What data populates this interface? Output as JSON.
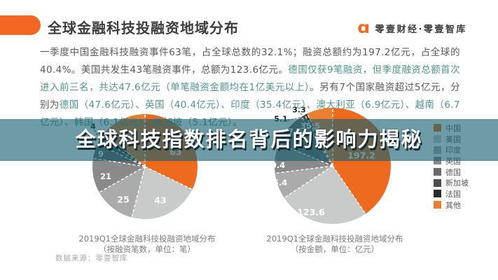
{
  "header": {
    "title": "全球金融科技投融资地域分布",
    "brand": "零壹财经·零壹智库",
    "logo_glyph": "ɑ"
  },
  "paragraph": {
    "segments": [
      {
        "text": "一季度中国金融科技融资事件63笔，占全球总数的32.1%；融资总额约为197.2亿元，占全球的40.4%。美国共发生43笔融资事件，总额为123.6亿元。",
        "accent": false
      },
      {
        "text": "德国仅获9笔融资，但季度融资总额首次进入前三名，共达47.6亿元（单笔融资金额均在1亿美元以上）",
        "accent": true
      },
      {
        "text": "。另有7个国家融资超过5亿元，分别为",
        "accent": false
      },
      {
        "text": "德国（47.6亿元）、英国（40.4亿元）、印度（35.4亿元）、澳大利亚（6.9亿元）、越南（6.7亿元）、韩国（6.1亿元）、新加坡（5.1亿元）",
        "accent": true
      },
      {
        "text": "。",
        "accent": false
      }
    ]
  },
  "banner": {
    "text": "全球科技指数排名背后的影响力揭秘"
  },
  "legend": {
    "items": [
      {
        "label": "中国",
        "color": "#ED6A1E"
      },
      {
        "label": "美国",
        "color": "#C9CBCB"
      },
      {
        "label": "印度",
        "color": "#ABABAB"
      },
      {
        "label": "英国",
        "color": "#8A8A8A"
      },
      {
        "label": "德国",
        "color": "#6B6B6B"
      },
      {
        "label": "新加坡",
        "color": "#4D4D4D"
      },
      {
        "label": "法国",
        "color": "#2B2B2B"
      },
      {
        "label": "其他",
        "color": "#ED7D31"
      }
    ]
  },
  "chart_data": [
    {
      "type": "pie",
      "title": "2019Q1全球金融科技投融资地域分布",
      "subtitle": "（按融资笔数，单位：笔）",
      "unit": "笔",
      "categories": [
        "中国",
        "美国",
        "印度",
        "英国",
        "德国",
        "新加坡",
        "法国",
        "其他"
      ],
      "values": [
        63,
        43,
        25,
        21,
        9,
        4,
        3,
        28
      ],
      "labels_shown": [
        "63",
        "43",
        "25",
        "21",
        "9",
        "4",
        null,
        null
      ],
      "colors": [
        "#ED6A1E",
        "#C9CBCB",
        "#ABABAB",
        "#8A8A8A",
        "#6B6B6B",
        "#4D4D4D",
        "#2B2B2B",
        "#ED7D31"
      ],
      "legend_position": "right",
      "note": "中国63笔占全球总数32.1%"
    },
    {
      "type": "pie",
      "title": "2019Q1全球金融科技投融资地域分布",
      "subtitle": "（按金额，单位：亿元）",
      "unit": "亿元",
      "categories": [
        "中国",
        "美国",
        "印度",
        "英国",
        "德国",
        "新加坡",
        "法国",
        "其他"
      ],
      "values": [
        197.2,
        123.6,
        35.4,
        40.4,
        47.6,
        5.1,
        3.3,
        35.5
      ],
      "labels_shown": [
        "197.2",
        "123.6",
        "35.4",
        "40.4",
        "47.6",
        "5.1",
        "3.3",
        "35.5"
      ],
      "colors": [
        "#ED6A1E",
        "#C9CBCB",
        "#ABABAB",
        "#8A8A8A",
        "#6B6B6B",
        "#4D4D4D",
        "#2B2B2B",
        "#ED7D31"
      ],
      "legend_position": "right",
      "note": "中国197.2亿元占全球40.4%"
    }
  ],
  "footer": {
    "source": "数据来源：零壹智库"
  },
  "colors": {
    "accent_orange": "#F26722",
    "text_base": "#595959",
    "text_accent": "#4F948C",
    "overlay_teal": "rgba(20,95,112,0.62)",
    "title_text": "#3D3D3D"
  }
}
